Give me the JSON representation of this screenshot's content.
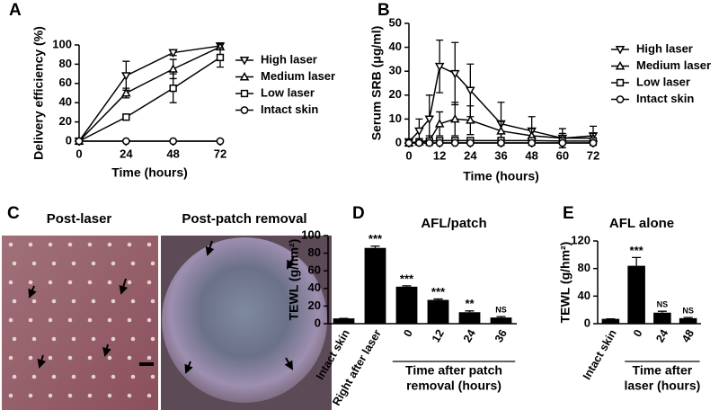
{
  "chart_data": [
    {
      "type": "line",
      "label": "A",
      "xlabel": "Time (hours)",
      "ylabel": "Delivery efficiency (%)",
      "x": [
        0,
        24,
        48,
        72
      ],
      "xlim": [
        0,
        72
      ],
      "xticks": [
        0,
        24,
        48,
        72
      ],
      "ylim": [
        0,
        100
      ],
      "yticks": [
        0,
        20,
        40,
        60,
        80,
        100
      ],
      "series": [
        {
          "name": "High laser",
          "marker": "triangle-down",
          "color": "#000000",
          "values": [
            0,
            68,
            92,
            99
          ],
          "errors": [
            0,
            15,
            3,
            3
          ]
        },
        {
          "name": "Medium laser",
          "marker": "triangle-up",
          "color": "#000000",
          "values": [
            0,
            50,
            75,
            98
          ],
          "errors": [
            0,
            5,
            10,
            3
          ]
        },
        {
          "name": "Low laser",
          "marker": "square",
          "color": "#000000",
          "values": [
            0,
            25,
            55,
            87
          ],
          "errors": [
            0,
            3,
            15,
            10
          ]
        },
        {
          "name": "Intact skin",
          "marker": "circle",
          "color": "#000000",
          "values": [
            0,
            0,
            0,
            0
          ],
          "errors": [
            0,
            0,
            0,
            0
          ]
        }
      ]
    },
    {
      "type": "line",
      "label": "B",
      "xlabel": "Time (hours)",
      "ylabel": "Serum SRB (μg/ml)",
      "x": [
        0,
        4,
        8,
        12,
        18,
        24,
        36,
        48,
        60,
        72
      ],
      "xlim": [
        0,
        72
      ],
      "xticks": [
        0,
        12,
        24,
        36,
        48,
        60,
        72
      ],
      "ylim": [
        0,
        50
      ],
      "yticks": [
        0,
        10,
        20,
        30,
        40,
        50
      ],
      "series": [
        {
          "name": "High laser",
          "marker": "triangle-down",
          "color": "#000000",
          "values": [
            0.5,
            5,
            10,
            32,
            29,
            22,
            8,
            5,
            2,
            3
          ],
          "errors": [
            0,
            5,
            10,
            11,
            13,
            11,
            9,
            6,
            4,
            4
          ]
        },
        {
          "name": "Medium laser",
          "marker": "triangle-up",
          "color": "#000000",
          "values": [
            0,
            0.5,
            1,
            8,
            10,
            9.5,
            5,
            3,
            2,
            2
          ],
          "errors": [
            0,
            1,
            2,
            5,
            7,
            6,
            4,
            3,
            2,
            2
          ]
        },
        {
          "name": "Low laser",
          "marker": "square",
          "color": "#000000",
          "values": [
            0,
            0.5,
            0.8,
            1,
            1,
            1,
            1,
            1,
            0.8,
            0.8
          ],
          "errors": [
            0,
            0.5,
            0.5,
            1,
            1,
            1,
            1,
            1,
            1,
            1
          ]
        },
        {
          "name": "Intact skin",
          "marker": "circle",
          "color": "#000000",
          "values": [
            0,
            0,
            0,
            0,
            0,
            0,
            0,
            0,
            0,
            0
          ],
          "errors": [
            0,
            0,
            0,
            0,
            0,
            0,
            0,
            0,
            0,
            0
          ]
        }
      ]
    },
    {
      "type": "image",
      "label": "C",
      "titles": [
        "Post-laser",
        "Post-patch removal"
      ]
    },
    {
      "type": "bar",
      "label": "D",
      "title": "AFL/patch",
      "ylabel": "TEWL (g/hm²)",
      "categories": [
        "Intact skin",
        "Right after laser",
        "0",
        "12",
        "24",
        "36"
      ],
      "values": [
        6,
        86,
        42,
        27,
        13,
        7
      ],
      "errors": [
        0,
        2,
        1,
        1,
        1.5,
        1
      ],
      "significance": [
        null,
        "***",
        "***",
        "***",
        "**",
        "NS"
      ],
      "xlabel": [
        "Time after patch",
        "removal (hours)"
      ],
      "ylim": [
        0,
        100
      ],
      "yticks": [
        0,
        20,
        40,
        60,
        80,
        100
      ],
      "color": "#000000"
    },
    {
      "type": "bar",
      "label": "E",
      "title": "AFL alone",
      "ylabel": "TEWL (g/hm²)",
      "categories": [
        "Intact skin",
        "0",
        "24",
        "48"
      ],
      "values": [
        7,
        84,
        16,
        8
      ],
      "errors": [
        0,
        12,
        2,
        1
      ],
      "significance": [
        null,
        "***",
        "NS",
        "NS"
      ],
      "xlabel": [
        "Time after",
        "laser (hours)"
      ],
      "ylim": [
        0,
        120
      ],
      "yticks": [
        0,
        40,
        80,
        120
      ],
      "color": "#000000"
    }
  ]
}
